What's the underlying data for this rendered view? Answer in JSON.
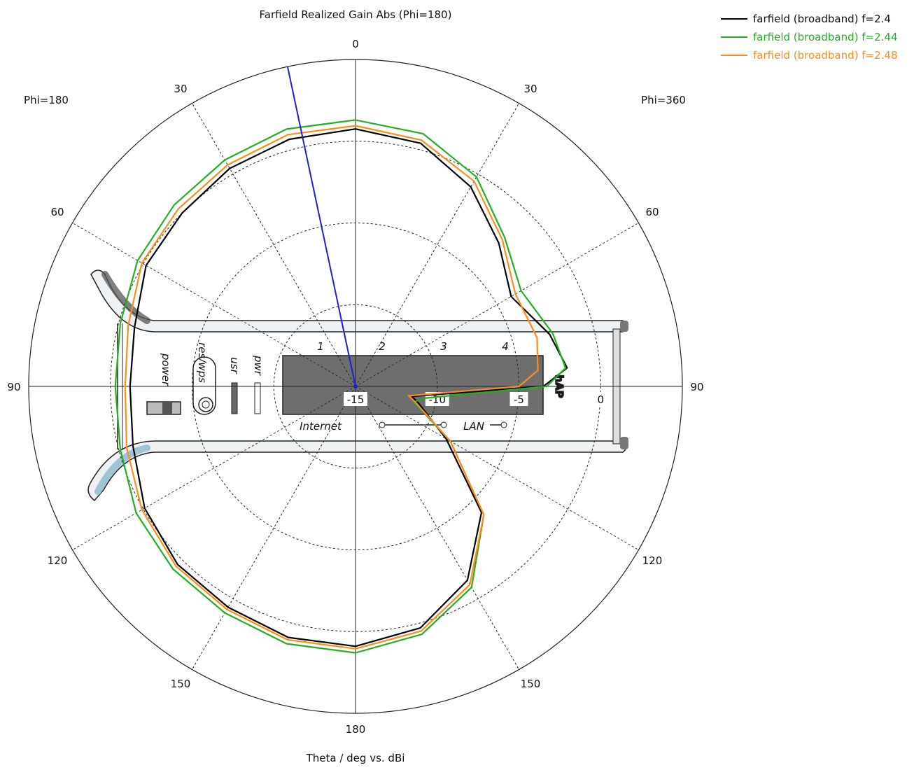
{
  "chart_data": {
    "type": "polar-line",
    "title": "Farfield Realized Gain Abs (Phi=180)",
    "xlabel": "Theta / deg vs. dBi",
    "phi_left_label": "Phi=180",
    "phi_right_label": "Phi=360",
    "angle_tick_labels": {
      "top": "0",
      "bottom": "180",
      "left": "90",
      "right": "90",
      "left_side": [
        "30",
        "60",
        "120",
        "150"
      ],
      "right_side": [
        "30",
        "60",
        "120",
        "150"
      ]
    },
    "radial_range_dbi": [
      -15,
      5
    ],
    "radial_tick_labels": [
      "-15",
      "-10",
      "-5",
      "0"
    ],
    "radial_ticks": [
      -15,
      -10,
      -5,
      0
    ],
    "theta_grid_step_deg": 30,
    "main_lobe_direction_deg": -12,
    "series": [
      {
        "name": "farfield (broadband) f=2.4",
        "color": "#000000",
        "points_theta_deg_gain_dbi": [
          [
            0,
            0.75
          ],
          [
            15,
            0.4
          ],
          [
            30,
            -0.9
          ],
          [
            45,
            -2.6
          ],
          [
            60,
            -4.0
          ],
          [
            75,
            -2.7
          ],
          [
            85,
            -2.0
          ],
          [
            90,
            -3.5
          ],
          [
            100,
            -11.5
          ],
          [
            105,
            -11.0
          ],
          [
            120,
            -8.6
          ],
          [
            135,
            -4.1
          ],
          [
            150,
            -1.3
          ],
          [
            165,
            0.3
          ],
          [
            180,
            0.9
          ],
          [
            195,
            0.9
          ],
          [
            210,
            0.6
          ],
          [
            225,
            0.4
          ],
          [
            240,
            -0.1
          ],
          [
            255,
            -0.9
          ],
          [
            270,
            -1.2
          ],
          [
            285,
            -1.0
          ],
          [
            300,
            -0.2
          ],
          [
            315,
            0.0
          ],
          [
            330,
            0.4
          ],
          [
            345,
            0.65
          ]
        ]
      },
      {
        "name": "farfield (broadband) f=2.44",
        "color": "#22b022",
        "points_theta_deg_gain_dbi": [
          [
            0,
            1.3
          ],
          [
            15,
            1.0
          ],
          [
            30,
            -0.2
          ],
          [
            45,
            -2.1
          ],
          [
            60,
            -3.3
          ],
          [
            75,
            -2.5
          ],
          [
            85,
            -2.1
          ],
          [
            90,
            -3.3
          ],
          [
            100,
            -10.8
          ],
          [
            105,
            -11.3
          ],
          [
            120,
            -8.3
          ],
          [
            135,
            -3.9
          ],
          [
            150,
            -0.8
          ],
          [
            165,
            0.7
          ],
          [
            180,
            1.3
          ],
          [
            195,
            1.3
          ],
          [
            210,
            1.0
          ],
          [
            225,
            0.8
          ],
          [
            240,
            0.5
          ],
          [
            255,
            -0.1
          ],
          [
            270,
            -0.3
          ],
          [
            285,
            -0.1
          ],
          [
            300,
            0.4
          ],
          [
            315,
            0.7
          ],
          [
            330,
            1.0
          ],
          [
            345,
            1.3
          ]
        ]
      },
      {
        "name": "farfield (broadband) f=2.48",
        "color": "#ff8c1a",
        "points_theta_deg_gain_dbi": [
          [
            0,
            0.95
          ],
          [
            15,
            0.6
          ],
          [
            30,
            -0.5
          ],
          [
            45,
            -2.3
          ],
          [
            60,
            -3.7
          ],
          [
            75,
            -3.5
          ],
          [
            85,
            -3.8
          ],
          [
            90,
            -5.0
          ],
          [
            100,
            -11.7
          ],
          [
            105,
            -11.2
          ],
          [
            120,
            -8.3
          ],
          [
            135,
            -3.9
          ],
          [
            150,
            -1.0
          ],
          [
            165,
            0.5
          ],
          [
            180,
            1.05
          ],
          [
            195,
            1.05
          ],
          [
            210,
            0.75
          ],
          [
            225,
            0.55
          ],
          [
            240,
            0.1
          ],
          [
            255,
            -0.5
          ],
          [
            270,
            -0.9
          ],
          [
            285,
            -0.6
          ],
          [
            300,
            0.1
          ],
          [
            315,
            0.35
          ],
          [
            330,
            0.65
          ],
          [
            345,
            0.95
          ]
        ]
      }
    ],
    "background_device": {
      "brand_text": "hAP",
      "port_numbers": [
        "1",
        "2",
        "3",
        "4"
      ],
      "port_labels": [
        "Internet",
        "LAN"
      ],
      "side_labels": [
        "power",
        "res/wps",
        "usr",
        "pwr"
      ]
    },
    "legend_position": "top-right",
    "grid": true
  }
}
